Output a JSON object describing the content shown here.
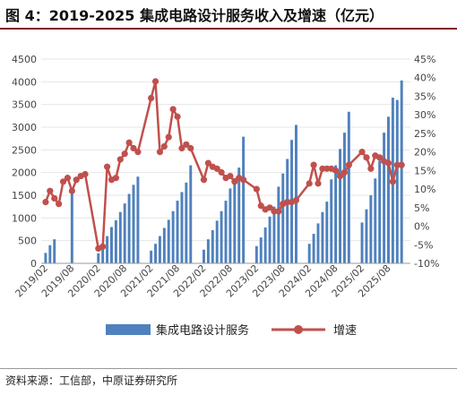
{
  "title": "图 4：2019-2025 集成电路设计服务收入及增速（亿元）",
  "source": "资料来源：工信部，中原证券研究所",
  "colors": {
    "bar": "#4f81bd",
    "line": "#c0504d",
    "rule": "#7f1d1d"
  },
  "chart_data": {
    "type": "bar",
    "left_axis": {
      "min": 0,
      "max": 4500,
      "ticks": [
        "0",
        "500",
        "1000",
        "1500",
        "2000",
        "2500",
        "3000",
        "3500",
        "4000",
        "4500"
      ]
    },
    "right_axis": {
      "min": -10,
      "max": 45,
      "ticks": [
        "-10%",
        "-5%",
        "0%",
        "5%",
        "10%",
        "15%",
        "20%",
        "25%",
        "30%",
        "35%",
        "40%",
        "45%"
      ]
    },
    "x_tick_labels": [
      "2019/02",
      "2019/08",
      "2020/02",
      "2020/08",
      "2021/02",
      "2021/08",
      "2022/02",
      "2022/08",
      "2023/02",
      "2023/08",
      "2024/02",
      "2024/08",
      "2025/02",
      "2025/08"
    ],
    "x_tick_months": [
      0,
      6,
      12,
      18,
      24,
      30,
      36,
      42,
      48,
      54,
      60,
      66,
      72,
      78
    ],
    "legend": [
      "集成电路设计服务",
      "增速"
    ],
    "series": [
      {
        "name": "集成电路设计服务",
        "kind": "bar",
        "axis": "left",
        "months": [
          0,
          1,
          2,
          6,
          12,
          13,
          14,
          15,
          16,
          17,
          18,
          19,
          20,
          21,
          24,
          25,
          26,
          27,
          28,
          29,
          30,
          31,
          32,
          33,
          36,
          37,
          38,
          39,
          40,
          41,
          42,
          43,
          44,
          45,
          48,
          49,
          50,
          51,
          52,
          53,
          54,
          55,
          56,
          57,
          60,
          61,
          62,
          63,
          64,
          65,
          66,
          67,
          68,
          69,
          72,
          73,
          74,
          75,
          76,
          77,
          78,
          79,
          80,
          81
        ],
        "values": [
          230,
          400,
          530,
          1550,
          220,
          400,
          600,
          800,
          950,
          1130,
          1320,
          1530,
          1730,
          1910,
          280,
          430,
          600,
          780,
          960,
          1150,
          1380,
          1570,
          1780,
          2160,
          300,
          530,
          730,
          940,
          1150,
          1380,
          1650,
          1880,
          2110,
          2790,
          380,
          570,
          790,
          1030,
          1250,
          1690,
          1980,
          2300,
          2720,
          3050,
          430,
          650,
          880,
          1130,
          1360,
          1850,
          2160,
          2520,
          2880,
          3340,
          900,
          1190,
          1500,
          1870,
          2260,
          2880,
          3230,
          3650,
          3600,
          4030
        ]
      },
      {
        "name": "增速",
        "kind": "line",
        "axis": "right",
        "months": [
          0,
          1,
          2,
          3,
          4,
          5,
          6,
          7,
          8,
          9,
          12,
          13,
          14,
          15,
          16,
          17,
          18,
          19,
          20,
          21,
          24,
          25,
          26,
          27,
          28,
          29,
          30,
          31,
          32,
          33,
          36,
          37,
          38,
          39,
          40,
          41,
          42,
          43,
          44,
          45,
          48,
          49,
          50,
          51,
          52,
          53,
          54,
          55,
          56,
          57,
          60,
          61,
          62,
          63,
          64,
          65,
          66,
          67,
          68,
          69,
          72,
          73,
          74,
          75,
          76,
          77,
          78,
          79,
          80,
          81
        ],
        "values": [
          6.5,
          9.5,
          7.5,
          6.0,
          12.0,
          13.0,
          9.5,
          12.5,
          13.5,
          14.0,
          -6.0,
          -5.5,
          16.0,
          12.5,
          13.0,
          18.0,
          19.5,
          22.5,
          21.0,
          20.0,
          34.5,
          39.0,
          20.0,
          21.5,
          24.0,
          31.5,
          29.5,
          21.0,
          22.0,
          21.0,
          12.5,
          17.0,
          16.0,
          15.5,
          14.5,
          13.0,
          13.5,
          12.0,
          13.0,
          12.5,
          10.0,
          5.5,
          4.5,
          5.0,
          4.0,
          4.0,
          6.0,
          6.5,
          6.5,
          7.0,
          11.5,
          16.5,
          11.5,
          15.5,
          15.5,
          15.5,
          15.0,
          13.5,
          14.5,
          16.5,
          20.0,
          18.5,
          15.5,
          19.0,
          18.5,
          17.5,
          17.0,
          12.0,
          16.5,
          16.5
        ]
      }
    ]
  }
}
